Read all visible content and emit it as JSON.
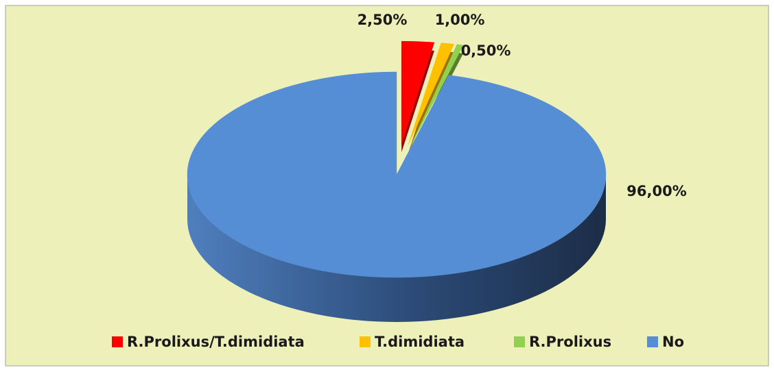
{
  "chart_data": {
    "type": "pie",
    "categories": [
      "R.Prolixus/T.dimidiata",
      "T.dimidiata",
      "R.Prolixus",
      "No"
    ],
    "values": [
      2.5,
      1,
      0.5,
      96
    ],
    "value_labels": [
      "2,50%",
      "1,00%",
      "0,50%",
      "96,00%"
    ],
    "colors": [
      "#ff0000",
      "#ffc000",
      "#92d050",
      "#558ed5"
    ],
    "legend": "bottom"
  }
}
